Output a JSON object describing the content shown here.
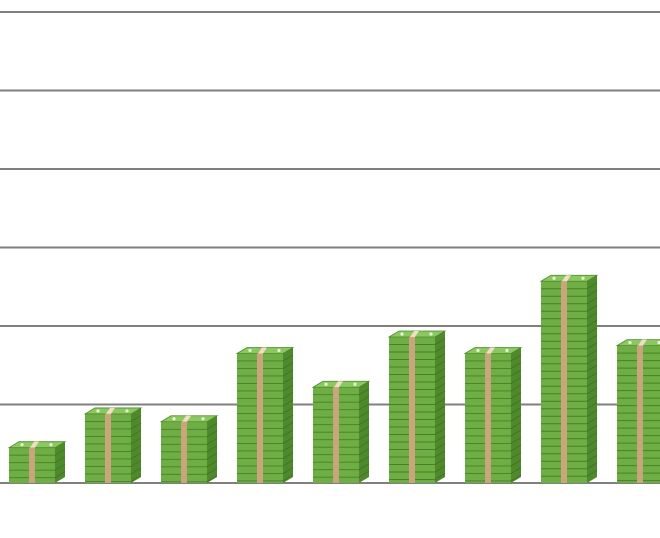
{
  "chart_data": {
    "type": "bar",
    "title": "",
    "xlabel": "",
    "ylabel": "",
    "grid": true,
    "ylim": [
      0,
      6
    ],
    "categories": [
      "",
      "",
      "",
      "",
      "",
      "",
      "",
      "",
      ""
    ],
    "values": [
      0.45,
      0.88,
      0.78,
      1.65,
      1.22,
      1.86,
      1.65,
      2.57,
      1.75
    ],
    "colors": {
      "bill_front": "#6fae45",
      "bill_side": "#4e8a2c",
      "bill_top": "#8cc860",
      "band": "#c8a57c",
      "band_light": "#f3dcc4",
      "gridline": "#7f7f7f"
    }
  }
}
